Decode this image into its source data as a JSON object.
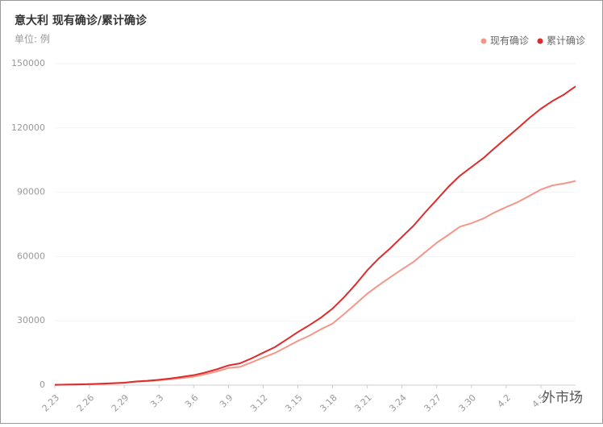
{
  "chart_data": {
    "type": "line",
    "title": "意大利 现有确诊/累计确诊",
    "subtitle": "单位: 例",
    "watermark": "外市场",
    "legend": "top-right",
    "grid": true,
    "categories": [
      "2.23",
      null,
      null,
      "2.26",
      null,
      null,
      "2.29",
      null,
      null,
      "3.3",
      null,
      null,
      "3.6",
      null,
      null,
      "3.9",
      null,
      null,
      "3.12",
      null,
      null,
      "3.15",
      null,
      null,
      "3.18",
      null,
      null,
      "3.21",
      null,
      null,
      "3.24",
      null,
      null,
      "3.27",
      null,
      null,
      "3.30",
      null,
      null,
      "4.2",
      null,
      null,
      "4.5",
      null,
      null,
      null
    ],
    "ylim": [
      0,
      150000
    ],
    "yticks": [
      0,
      30000,
      60000,
      90000,
      120000,
      150000
    ],
    "series": [
      {
        "name": "现有确诊",
        "color": "#f4978a",
        "values": [
          150,
          221,
          311,
          438,
          593,
          821,
          1049,
          1577,
          1835,
          2263,
          2706,
          3296,
          3916,
          5061,
          6387,
          7985,
          8514,
          10590,
          12839,
          14955,
          17750,
          20603,
          23073,
          26062,
          28710,
          33190,
          37860,
          42681,
          46638,
          50418,
          54030,
          57521,
          62013,
          66414,
          70065,
          73880,
          75528,
          77635,
          80572,
          83049,
          85388,
          88274,
          91246,
          93187,
          94067,
          95262
        ]
      },
      {
        "name": "累计确诊",
        "color": "#dd2c2c",
        "values": [
          155,
          229,
          322,
          453,
          655,
          888,
          1128,
          1694,
          2036,
          2502,
          3089,
          3858,
          4636,
          5883,
          7375,
          9172,
          10149,
          12462,
          15113,
          17660,
          21157,
          24747,
          27980,
          31506,
          35713,
          41035,
          47021,
          53578,
          59138,
          63927,
          69176,
          74386,
          80589,
          86498,
          92472,
          97689,
          101739,
          105792,
          110574,
          115242,
          119827,
          124632,
          128948,
          132547,
          135586,
          139422
        ]
      }
    ]
  }
}
